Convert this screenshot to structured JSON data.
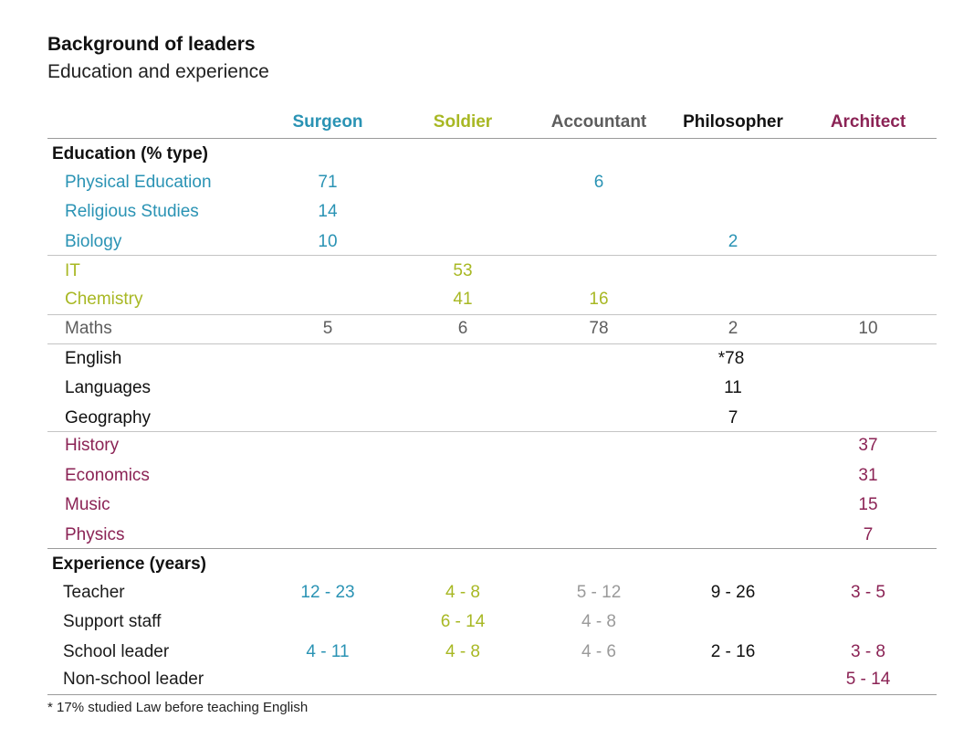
{
  "title": "Background of leaders",
  "subtitle": "Education and experience",
  "colors": {
    "surgeon": "#2a93b4",
    "soldier": "#a8b824",
    "accountant": "#5d5d5d",
    "philosopher": "#111111",
    "architect": "#8b2355",
    "exp_accountant": "#9a9a9a"
  },
  "columns": [
    "Surgeon",
    "Soldier",
    "Accountant",
    "Philosopher",
    "Architect"
  ],
  "education": {
    "heading": "Education (% type)",
    "rows": [
      {
        "label": "Physical Education",
        "values": [
          "71",
          "",
          "6",
          "",
          ""
        ]
      },
      {
        "label": "Religious Studies",
        "values": [
          "14",
          "",
          "",
          "",
          ""
        ]
      },
      {
        "label": "Biology",
        "values": [
          "10",
          "",
          "",
          "2",
          ""
        ]
      },
      {
        "label": "IT",
        "values": [
          "",
          "53",
          "",
          "",
          ""
        ]
      },
      {
        "label": "Chemistry",
        "values": [
          "",
          "41",
          "16",
          "",
          ""
        ]
      },
      {
        "label": "Maths",
        "values": [
          "5",
          "6",
          "78",
          "2",
          "10"
        ]
      },
      {
        "label": "English",
        "values": [
          "",
          "",
          "",
          "*78",
          ""
        ]
      },
      {
        "label": "Languages",
        "values": [
          "",
          "",
          "",
          "11",
          ""
        ]
      },
      {
        "label": "Geography",
        "values": [
          "",
          "",
          "",
          "7",
          ""
        ]
      },
      {
        "label": "History",
        "values": [
          "",
          "",
          "",
          "",
          "37"
        ]
      },
      {
        "label": "Economics",
        "values": [
          "",
          "",
          "",
          "",
          "31"
        ]
      },
      {
        "label": "Music",
        "values": [
          "",
          "",
          "",
          "",
          "15"
        ]
      },
      {
        "label": "Physics",
        "values": [
          "",
          "",
          "",
          "",
          "7"
        ]
      }
    ]
  },
  "experience": {
    "heading": "Experience (years)",
    "rows": [
      {
        "label": "Teacher",
        "values": [
          "12 - 23",
          "4 - 8",
          "5 - 12",
          "9 - 26",
          "3 - 5"
        ]
      },
      {
        "label": "Support staff",
        "values": [
          "",
          "6 - 14",
          "4 - 8",
          "",
          ""
        ]
      },
      {
        "label": "School leader",
        "values": [
          "4 - 11",
          "4 - 8",
          "4 - 6",
          "2 - 16",
          "3 - 8"
        ]
      },
      {
        "label": "Non-school leader",
        "values": [
          "",
          "",
          "",
          "",
          "5 - 14"
        ]
      }
    ]
  },
  "footnote": "* 17% studied Law before teaching English"
}
